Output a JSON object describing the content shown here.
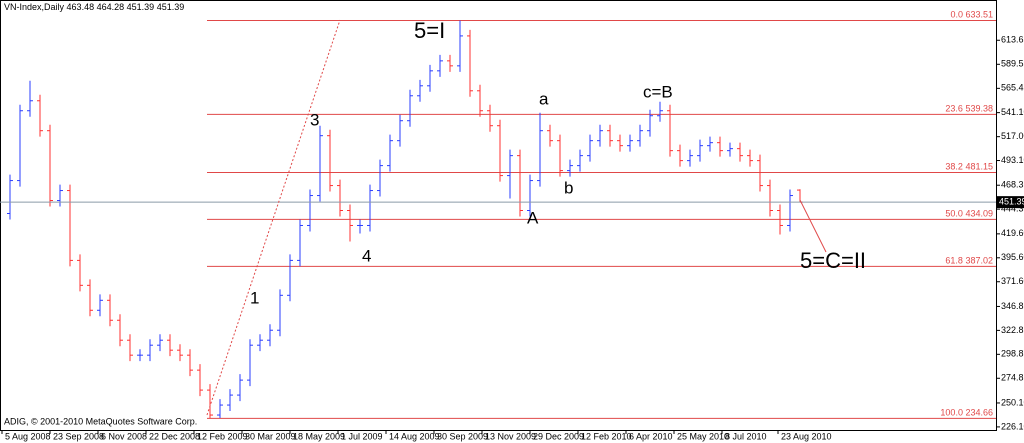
{
  "chart_data": {
    "type": "ohlc",
    "symbol": "VN-Index,Daily",
    "copyright": "ADIG, © 2001-2010 MetaQuotes Software Corp.",
    "up_color": "#2a3cff",
    "down_color": "#ff3030",
    "fib_color": "#e04848",
    "ylim": [
      223,
      654
    ],
    "yticks": [
      613.65,
      589.55,
      565.45,
      {
        "value": 541.1,
        "label": "541.10"
      },
      {
        "value": 517,
        "label": "517.00"
      },
      {
        "value": 493.1,
        "label": "493.10"
      },
      468.35,
      444.35,
      {
        "value": 419.6,
        "label": "419.60"
      },
      {
        "value": 395.6,
        "label": "395.60"
      },
      {
        "value": 371.6,
        "label": "371.60"
      },
      346.85,
      322.85,
      298.85,
      274.85,
      {
        "value": 250.1,
        "label": "250.10"
      },
      {
        "value": 226.1,
        "label": "226.10"
      }
    ],
    "xlim": [
      -1,
      98.6
    ],
    "xticks": [
      {
        "value": -0.8,
        "label": "5 Aug 2008"
      },
      {
        "value": 4,
        "label": "23 Sep 2008"
      },
      {
        "value": 8.8,
        "label": "6 Nov 2008"
      },
      {
        "value": 13.6,
        "label": "22 Dec 2008"
      },
      {
        "value": 18.4,
        "label": "12 Feb 2009"
      },
      {
        "value": 23.2,
        "label": "30 Mar 2009"
      },
      {
        "value": 28,
        "label": "18 May 2009"
      },
      {
        "value": 32.8,
        "label": "1 Jul 2009"
      },
      {
        "value": 37.6,
        "label": "14 Aug 2009"
      },
      {
        "value": 42.4,
        "label": "30 Sep 2009"
      },
      {
        "value": 47.2,
        "label": "13 Nov 2009"
      },
      {
        "value": 52,
        "label": "29 Dec 2009"
      },
      {
        "value": 56.8,
        "label": "12 Feb 2010"
      },
      {
        "value": 61.6,
        "label": "6 Apr 2010"
      },
      {
        "value": 66.4,
        "label": "25 May 2010"
      },
      {
        "value": 71.2,
        "label": "8 Jul 2010"
      },
      {
        "value": 76.8,
        "label": "23 Aug 2010"
      }
    ],
    "fib_levels": [
      {
        "label": "0.0",
        "value": 633.51
      },
      {
        "label": "23.6",
        "value": 539.38
      },
      {
        "label": "38.2",
        "value": 481.15
      },
      {
        "label": "50.0",
        "value": 434.09
      },
      {
        "label": "61.8",
        "value": 387.02
      },
      {
        "label": "100.0",
        "value": 234.66
      }
    ],
    "annotations": [
      "5=I",
      "3",
      "4",
      "1",
      "a",
      "b",
      "A",
      "c=B",
      "5=C=II"
    ],
    "open": [
      440,
      473,
      543,
      553,
      523,
      453,
      463,
      393,
      368,
      343,
      353,
      333,
      313,
      298,
      298,
      308,
      313,
      303,
      298,
      283,
      263,
      238,
      248,
      258,
      273,
      308,
      313,
      323,
      358,
      393,
      428,
      458,
      518,
      468,
      443,
      428,
      428,
      463,
      488,
      513,
      533,
      558,
      568,
      583,
      593,
      588,
      618,
      563,
      543,
      528,
      478,
      498,
      443,
      473,
      523,
      513,
      483,
      488,
      498,
      513,
      523,
      513,
      508,
      513,
      523,
      538,
      543,
      503,
      493,
      498,
      508,
      511,
      503,
      505,
      498,
      493,
      468,
      443,
      428,
      463.48
    ],
    "high": [
      479,
      549,
      573,
      559,
      529,
      469,
      469,
      399,
      374,
      359,
      359,
      339,
      319,
      304,
      314,
      319,
      319,
      309,
      304,
      289,
      269,
      254,
      264,
      279,
      314,
      319,
      329,
      364,
      399,
      434,
      464,
      528,
      524,
      474,
      449,
      434,
      469,
      494,
      519,
      539,
      564,
      574,
      589,
      599,
      599,
      633.51,
      624,
      569,
      549,
      534,
      504,
      504,
      479,
      541,
      529,
      519,
      494,
      504,
      519,
      529,
      529,
      519,
      519,
      529,
      544,
      552,
      549,
      509,
      504,
      514,
      517,
      517,
      511,
      511,
      504,
      499,
      474,
      449,
      464,
      464.28
    ],
    "low": [
      434,
      467,
      537,
      517,
      447,
      447,
      387,
      362,
      337,
      337,
      327,
      307,
      292,
      292,
      292,
      302,
      297,
      292,
      277,
      257,
      234.66,
      235,
      242,
      252,
      267,
      302,
      307,
      317,
      352,
      387,
      422,
      452,
      462,
      437,
      412,
      420,
      422,
      457,
      482,
      507,
      527,
      552,
      562,
      577,
      582,
      582,
      557,
      537,
      522,
      472,
      455,
      437,
      437,
      467,
      507,
      477,
      477,
      482,
      492,
      507,
      507,
      502,
      502,
      507,
      517,
      532,
      497,
      487,
      487,
      492,
      502,
      497,
      497,
      492,
      487,
      462,
      437,
      419,
      422,
      451.39
    ],
    "close": [
      473,
      543,
      553,
      523,
      453,
      463,
      393,
      368,
      343,
      353,
      333,
      313,
      298,
      298,
      308,
      313,
      303,
      298,
      283,
      263,
      238,
      248,
      258,
      273,
      308,
      313,
      323,
      358,
      393,
      428,
      458,
      518,
      468,
      443,
      428,
      428,
      463,
      488,
      513,
      533,
      558,
      568,
      583,
      593,
      588,
      618,
      563,
      543,
      528,
      478,
      498,
      443,
      473,
      523,
      513,
      483,
      488,
      498,
      513,
      523,
      513,
      508,
      513,
      523,
      538,
      543,
      503,
      493,
      498,
      508,
      511,
      503,
      505,
      498,
      493,
      468,
      443,
      428,
      458,
      451.39
    ]
  }
}
